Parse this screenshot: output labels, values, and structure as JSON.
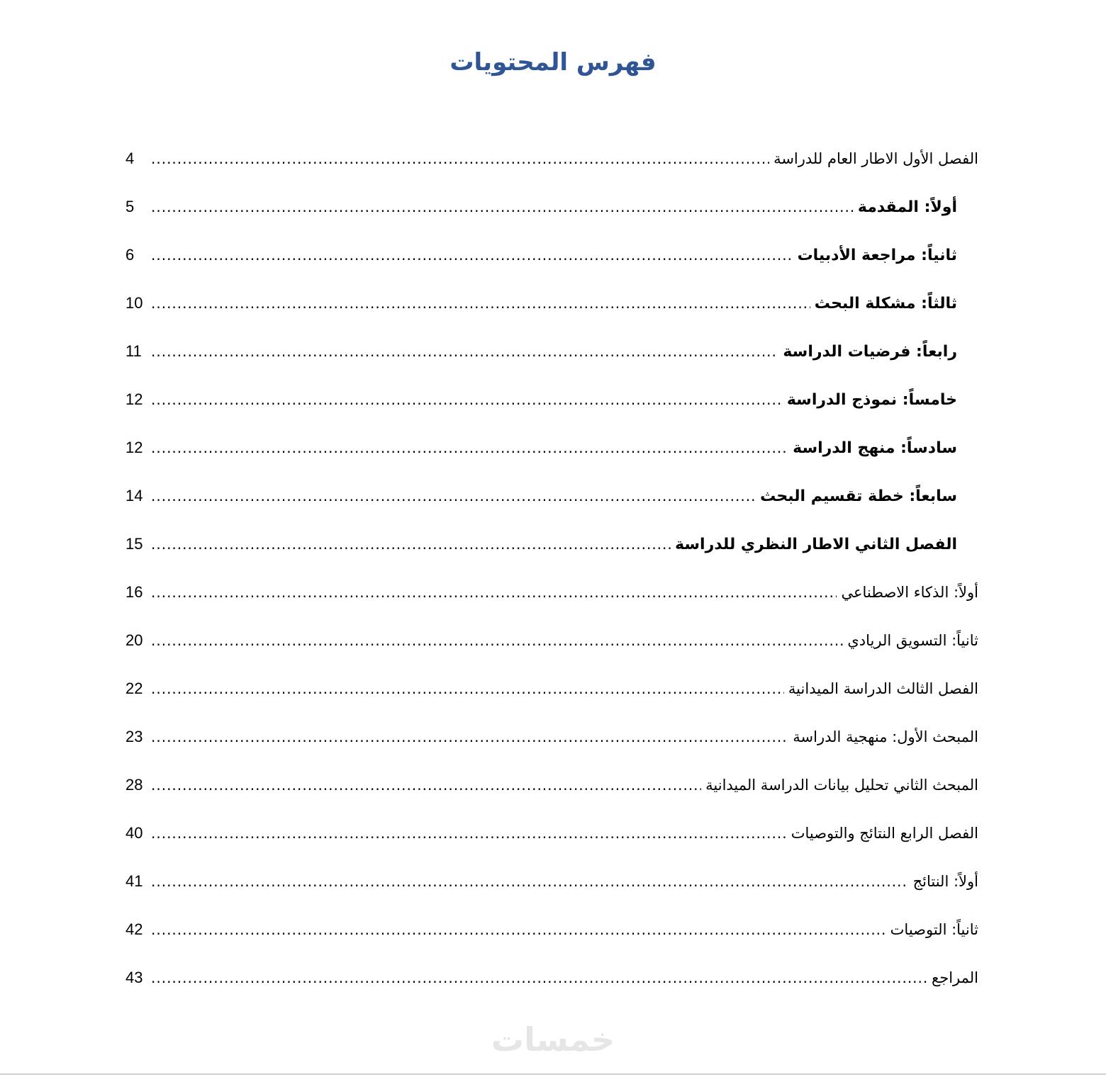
{
  "title": "فهرس المحتويات",
  "entries": [
    {
      "label": "الفصل الأول الاطار العام للدراسة",
      "page": "4",
      "bold": false,
      "indent": false
    },
    {
      "label": "أولاً: المقدمة",
      "page": "5",
      "bold": true,
      "indent": true
    },
    {
      "label": "ثانياً: مراجعة الأدبيات",
      "page": "6",
      "bold": true,
      "indent": true
    },
    {
      "label": "ثالثاً: مشكلة البحث",
      "page": "10",
      "bold": true,
      "indent": true
    },
    {
      "label": "رابعاً: فرضيات الدراسة",
      "page": "11",
      "bold": true,
      "indent": true
    },
    {
      "label": "خامساً: نموذج الدراسة",
      "page": "12",
      "bold": true,
      "indent": true
    },
    {
      "label": "سادساً: منهج الدراسة",
      "page": "12",
      "bold": true,
      "indent": true
    },
    {
      "label": "سابعاً: خطة تقسيم البحث",
      "page": "14",
      "bold": true,
      "indent": true
    },
    {
      "label": "الفصل الثاني الاطار النظري للدراسة",
      "page": "15",
      "bold": true,
      "indent": true
    },
    {
      "label": "أولاً: الذكاء الاصطناعي",
      "page": "16",
      "bold": false,
      "indent": false
    },
    {
      "label": "ثانياً: التسويق الريادي",
      "page": "20",
      "bold": false,
      "indent": false
    },
    {
      "label": "الفصل الثالث الدراسة الميدانية",
      "page": "22",
      "bold": false,
      "indent": false
    },
    {
      "label": "المبحث الأول: منهجية الدراسة",
      "page": "23",
      "bold": false,
      "indent": false
    },
    {
      "label": "المبحث الثاني تحليل بيانات الدراسة الميدانية",
      "page": "28",
      "bold": false,
      "indent": false
    },
    {
      "label": "الفصل الرابع النتائج والتوصيات",
      "page": "40",
      "bold": false,
      "indent": false
    },
    {
      "label": "أولاً: النتائج",
      "page": "41",
      "bold": false,
      "indent": false
    },
    {
      "label": "ثانياً: التوصيات",
      "page": "42",
      "bold": false,
      "indent": false
    },
    {
      "label": "المراجع",
      "page": "43",
      "bold": false,
      "indent": false
    }
  ],
  "watermark": "خمسات",
  "colors": {
    "title": "#2f5597",
    "watermark": "#e6e6e6"
  }
}
